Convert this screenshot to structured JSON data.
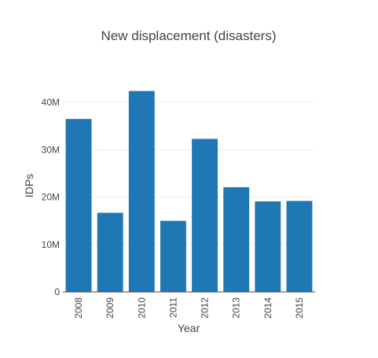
{
  "chart_data": {
    "type": "bar",
    "title": "New displacement (disasters)",
    "xlabel": "Year",
    "ylabel": "IDPs",
    "categories": [
      "2008",
      "2009",
      "2010",
      "2011",
      "2012",
      "2013",
      "2014",
      "2015"
    ],
    "values": [
      36500000,
      16700000,
      42400000,
      15000000,
      32300000,
      22100000,
      19100000,
      19200000
    ],
    "ylim": [
      0,
      45000000
    ],
    "yticks": [
      0,
      10000000,
      20000000,
      30000000,
      40000000
    ],
    "ytick_labels": [
      "0",
      "10M",
      "20M",
      "30M",
      "40M"
    ],
    "bar_color": "#1f77b4",
    "grid": true,
    "legend": "none"
  }
}
